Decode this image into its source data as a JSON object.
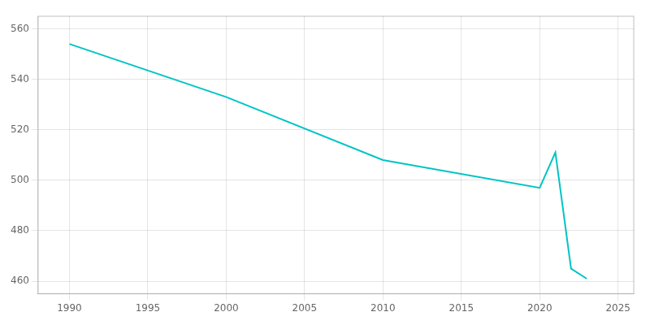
{
  "chart_data": {
    "type": "line",
    "x": [
      1990,
      2000,
      2010,
      2020,
      2021,
      2022,
      2023
    ],
    "values": [
      554,
      533,
      508,
      497,
      511,
      465,
      461
    ],
    "color": "#00C4C4",
    "xlim": [
      1988,
      2026
    ],
    "ylim": [
      455,
      565
    ],
    "xticks": [
      1990,
      1995,
      2000,
      2005,
      2010,
      2015,
      2020,
      2025
    ],
    "yticks": [
      460,
      480,
      500,
      520,
      540,
      560
    ],
    "grid": true
  }
}
